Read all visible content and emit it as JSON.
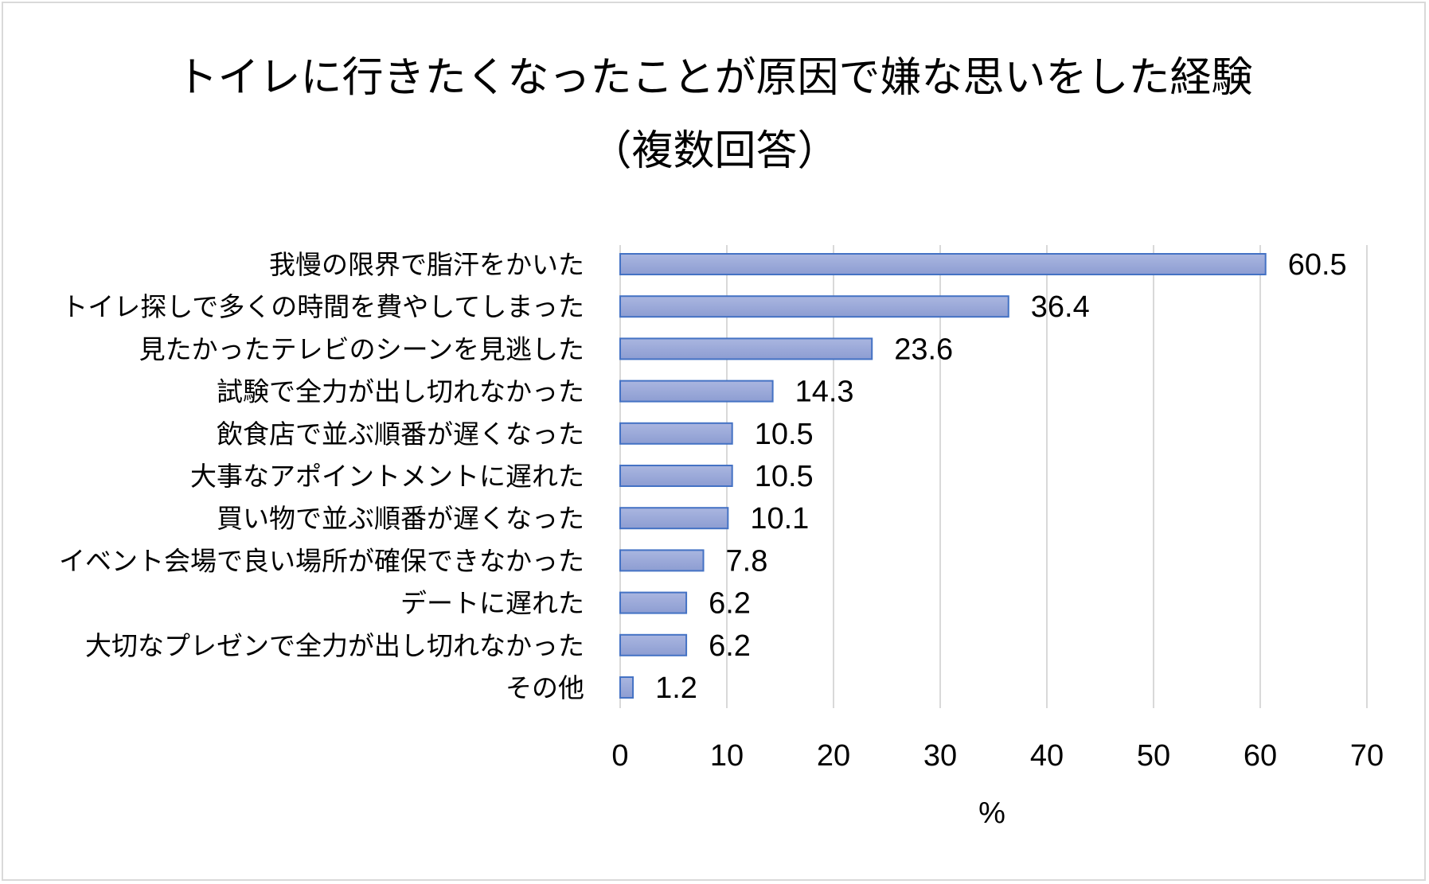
{
  "chart_data": {
    "type": "bar",
    "orientation": "horizontal",
    "title_lines": [
      "トイレに行きたくなったことが原因で嫌な思いをした経験",
      "（複数回答）"
    ],
    "categories": [
      "我慢の限界で脂汗をかいた",
      "トイレ探しで多くの時間を費やしてしまった",
      "見たかったテレビのシーンを見逃した",
      "試験で全力が出し切れなかった",
      "飲食店で並ぶ順番が遅くなった",
      "大事なアポイントメントに遅れた",
      "買い物で並ぶ順番が遅くなった",
      "イベント会場で良い場所が確保できなかった",
      "デートに遅れた",
      "大切なプレゼンで全力が出し切れなかった",
      "その他"
    ],
    "values": [
      60.5,
      36.4,
      23.6,
      14.3,
      10.5,
      10.5,
      10.1,
      7.8,
      6.2,
      6.2,
      1.2
    ],
    "value_labels": [
      "60.5",
      "36.4",
      "23.6",
      "14.3",
      "10.5",
      "10.5",
      "10.1",
      "7.8",
      "6.2",
      "6.2",
      "1.2"
    ],
    "xlabel": "%",
    "ylabel": "",
    "xlim": [
      0,
      70
    ],
    "xticks": [
      0,
      10,
      20,
      30,
      40,
      50,
      60,
      70
    ],
    "xtick_labels": [
      "0",
      "10",
      "20",
      "30",
      "40",
      "50",
      "60",
      "70"
    ],
    "grid": true,
    "legend": "none",
    "colors": {
      "bar_fill_top": "#aab6e0",
      "bar_fill_bottom": "#8d9dd2",
      "bar_edge": "#4472c4",
      "grid": "#d9d9d9",
      "text": "#000000"
    }
  }
}
